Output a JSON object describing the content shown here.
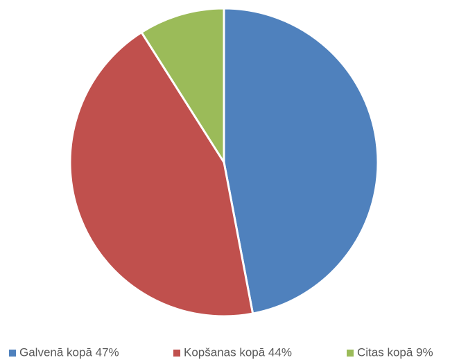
{
  "chart_data": {
    "type": "pie",
    "categories": [
      "Galvenā kopā 47%",
      "Kopšanas kopā 44%",
      "Citas kopā 9%"
    ],
    "values": [
      47,
      44,
      9
    ],
    "colors": [
      "#4f81bd",
      "#c0504d",
      "#9bbb59"
    ],
    "legend": "bottom"
  }
}
